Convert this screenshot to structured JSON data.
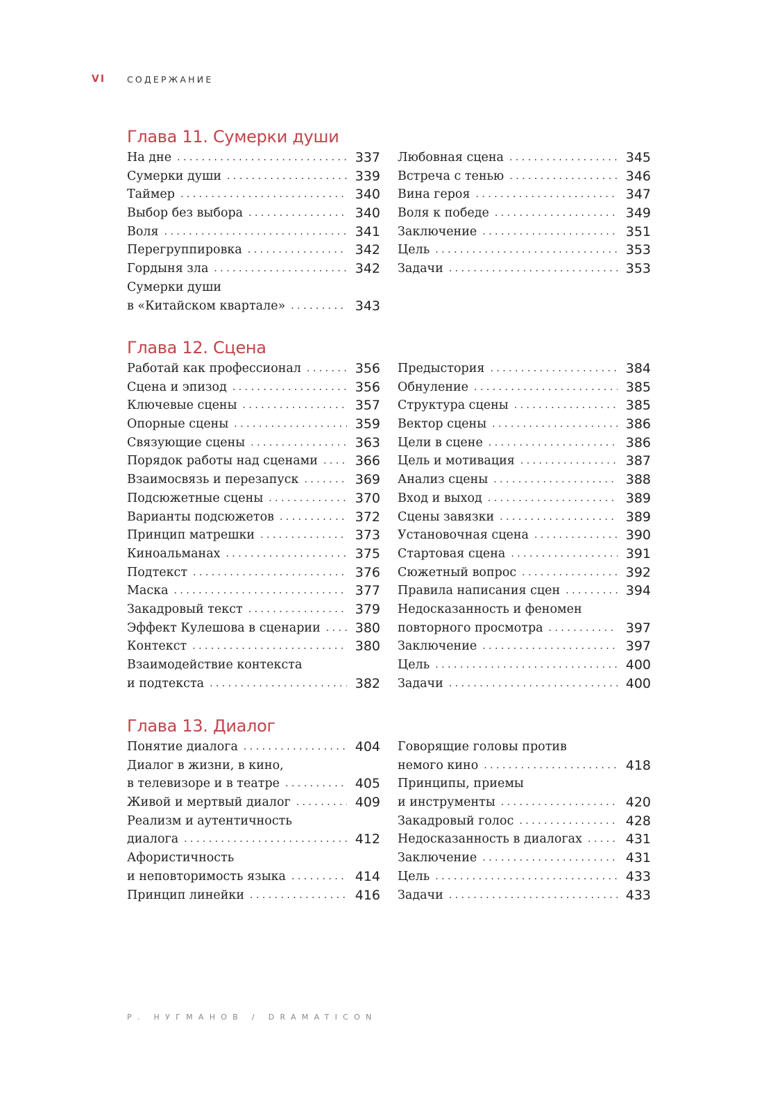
{
  "header": {
    "page_number": "VI",
    "section_title": "СОДЕРЖАНИЕ"
  },
  "accent_color": "#c2454c",
  "chapters": [
    {
      "title": "Глава 11. Сумерки души",
      "columns": [
        [
          {
            "lines": [
              "На дне"
            ],
            "page": "337"
          },
          {
            "lines": [
              "Сумерки души"
            ],
            "page": "339"
          },
          {
            "lines": [
              "Таймер"
            ],
            "page": "340"
          },
          {
            "lines": [
              "Выбор без выбора"
            ],
            "page": "340"
          },
          {
            "lines": [
              "Воля"
            ],
            "page": "341"
          },
          {
            "lines": [
              "Перегруппировка"
            ],
            "page": "342"
          },
          {
            "lines": [
              "Гордыня зла"
            ],
            "page": "342"
          },
          {
            "lines": [
              "Сумерки души",
              "в «Китайском квартале»"
            ],
            "page": "343"
          }
        ],
        [
          {
            "lines": [
              "Любовная сцена"
            ],
            "page": "345"
          },
          {
            "lines": [
              "Встреча с тенью"
            ],
            "page": "346"
          },
          {
            "lines": [
              "Вина героя"
            ],
            "page": "347"
          },
          {
            "lines": [
              "Воля к победе"
            ],
            "page": "349"
          },
          {
            "lines": [
              "Заключение"
            ],
            "page": "351"
          },
          {
            "lines": [
              "Цель"
            ],
            "page": "353"
          },
          {
            "lines": [
              "Задачи"
            ],
            "page": "353"
          }
        ]
      ]
    },
    {
      "title": "Глава 12. Сцена",
      "columns": [
        [
          {
            "lines": [
              "Работай как профессионал"
            ],
            "page": "356"
          },
          {
            "lines": [
              "Сцена и эпизод"
            ],
            "page": "356"
          },
          {
            "lines": [
              "Ключевые сцены"
            ],
            "page": "357"
          },
          {
            "lines": [
              "Опорные сцены"
            ],
            "page": "359"
          },
          {
            "lines": [
              "Связующие сцены"
            ],
            "page": "363"
          },
          {
            "lines": [
              "Порядок работы над сценами"
            ],
            "page": "366"
          },
          {
            "lines": [
              "Взаимосвязь и перезапуск"
            ],
            "page": "369"
          },
          {
            "lines": [
              "Подсюжетные сцены"
            ],
            "page": "370"
          },
          {
            "lines": [
              "Варианты подсюжетов"
            ],
            "page": "372"
          },
          {
            "lines": [
              "Принцип матрешки"
            ],
            "page": "373"
          },
          {
            "lines": [
              "Киноальманах"
            ],
            "page": "375"
          },
          {
            "lines": [
              "Подтекст"
            ],
            "page": "376"
          },
          {
            "lines": [
              "Маска"
            ],
            "page": "377"
          },
          {
            "lines": [
              "Закадровый текст"
            ],
            "page": "379"
          },
          {
            "lines": [
              "Эффект Кулешова в сценарии"
            ],
            "page": "380"
          },
          {
            "lines": [
              "Контекст"
            ],
            "page": "380"
          },
          {
            "lines": [
              "Взаимодействие контекста",
              "и подтекста"
            ],
            "page": "382"
          }
        ],
        [
          {
            "lines": [
              "Предыстория"
            ],
            "page": "384"
          },
          {
            "lines": [
              "Обнуление"
            ],
            "page": "385"
          },
          {
            "lines": [
              "Структура сцены"
            ],
            "page": "385"
          },
          {
            "lines": [
              "Вектор сцены"
            ],
            "page": "386"
          },
          {
            "lines": [
              "Цели в сцене"
            ],
            "page": "386"
          },
          {
            "lines": [
              "Цель и мотивация"
            ],
            "page": "387"
          },
          {
            "lines": [
              "Анализ сцены"
            ],
            "page": "388"
          },
          {
            "lines": [
              "Вход и выход"
            ],
            "page": "389"
          },
          {
            "lines": [
              "Сцены завязки"
            ],
            "page": "389"
          },
          {
            "lines": [
              "Установочная сцена"
            ],
            "page": "390"
          },
          {
            "lines": [
              "Стартовая сцена"
            ],
            "page": "391"
          },
          {
            "lines": [
              "Сюжетный вопрос"
            ],
            "page": "392"
          },
          {
            "lines": [
              "Правила написания сцен"
            ],
            "page": "394"
          },
          {
            "lines": [
              "Недосказанность и феномен",
              "повторного просмотра"
            ],
            "page": "397"
          },
          {
            "lines": [
              "Заключение"
            ],
            "page": "397"
          },
          {
            "lines": [
              "Цель"
            ],
            "page": "400"
          },
          {
            "lines": [
              "Задачи"
            ],
            "page": "400"
          }
        ]
      ]
    },
    {
      "title": "Глава 13. Диалог",
      "columns": [
        [
          {
            "lines": [
              "Понятие диалога"
            ],
            "page": "404"
          },
          {
            "lines": [
              "Диалог в жизни, в кино,",
              "в телевизоре и в театре"
            ],
            "page": "405"
          },
          {
            "lines": [
              "Живой и мертвый диалог"
            ],
            "page": "409"
          },
          {
            "lines": [
              "Реализм и аутентичность",
              "диалога"
            ],
            "page": "412"
          },
          {
            "lines": [
              "Афористичность",
              "и неповторимость языка"
            ],
            "page": "414"
          },
          {
            "lines": [
              "Принцип линейки"
            ],
            "page": "416"
          }
        ],
        [
          {
            "lines": [
              "Говорящие головы против",
              "немого кино"
            ],
            "page": "418"
          },
          {
            "lines": [
              "Принципы, приемы",
              "и инструменты"
            ],
            "page": "420"
          },
          {
            "lines": [
              "Закадровый голос"
            ],
            "page": "428"
          },
          {
            "lines": [
              "Недосказанность в диалогах"
            ],
            "page": "431"
          },
          {
            "lines": [
              "Заключение"
            ],
            "page": "431"
          },
          {
            "lines": [
              "Цель"
            ],
            "page": "433"
          },
          {
            "lines": [
              "Задачи"
            ],
            "page": "433"
          }
        ]
      ]
    }
  ],
  "footer": "Р. НУГМАНОВ / DRAMATICON"
}
